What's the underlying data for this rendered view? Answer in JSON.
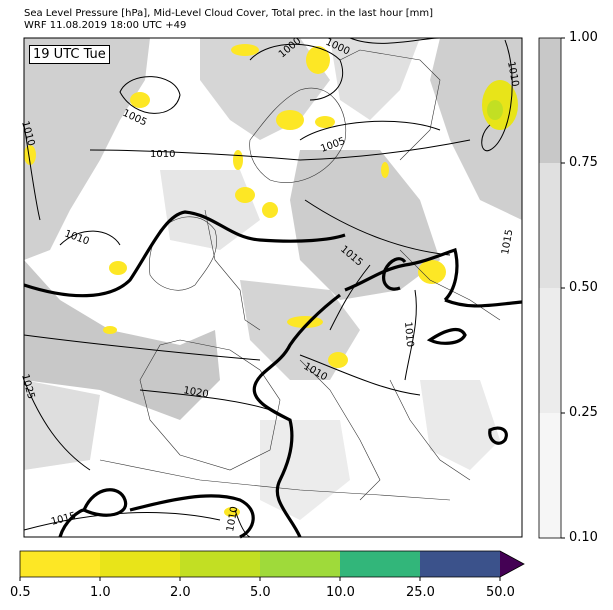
{
  "header": {
    "line1": "Sea Level Pressure [hPa], Mid-Level Cloud Cover, Total prec. in the last hour [mm]",
    "line2": "WRF 11.08.2019 18:00 UTC +49"
  },
  "map": {
    "time_label": "19 UTC Tue",
    "isobar_labels": [
      "1000",
      "1000",
      "1010",
      "1005",
      "1010",
      "1005",
      "1010",
      "1010",
      "1015",
      "1015",
      "1010",
      "1010",
      "1020",
      "1025",
      "1015",
      "1010"
    ]
  },
  "cloud_colorbar": {
    "ticks": [
      "1.00",
      "0.75",
      "0.50",
      "0.25",
      "0.10"
    ],
    "colors": [
      "#c8c8c8",
      "#e0e0e0",
      "#ececec",
      "#f6f6f6"
    ]
  },
  "precip_colorbar": {
    "ticks": [
      "0.5",
      "1.0",
      "2.0",
      "5.0",
      "10.0",
      "25.0",
      "50.0"
    ],
    "colors": [
      "#fde725",
      "#e8e419",
      "#c2df23",
      "#9fda3a",
      "#32b67a",
      "#3b528b",
      "#440154"
    ]
  }
}
